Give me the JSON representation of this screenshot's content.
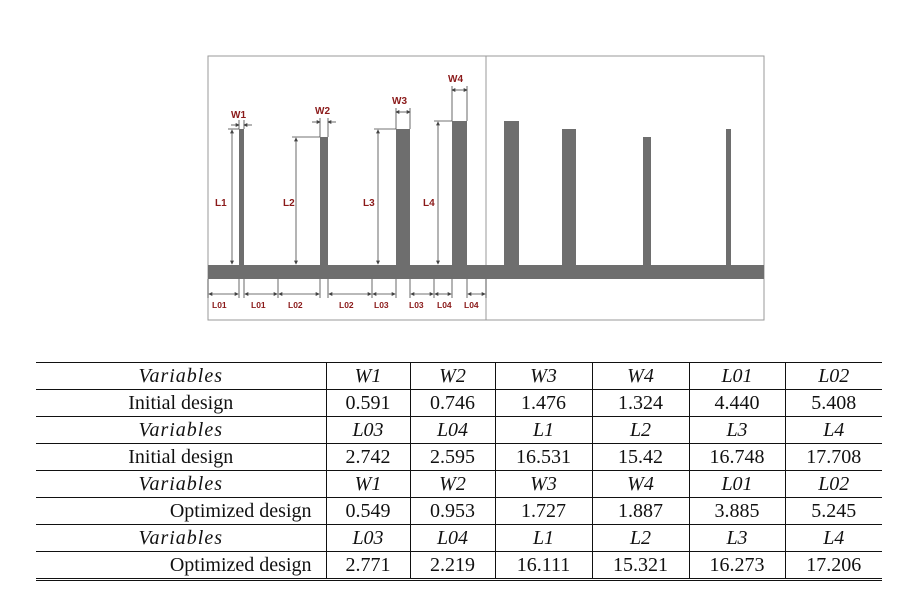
{
  "figure": {
    "labels": {
      "w1": "W1",
      "w2": "W2",
      "w3": "W3",
      "w4": "W4",
      "l1": "L1",
      "l2": "L2",
      "l3": "L3",
      "l4": "L4",
      "l01a": "L01",
      "l01b": "L01",
      "l02a": "L02",
      "l02b": "L02",
      "l03a": "L03",
      "l03b": "L03",
      "l04a": "L04",
      "l04b": "L04"
    },
    "bar_color": "#6e6e6e",
    "label_color": "#8b1a1a"
  },
  "table": {
    "rows": [
      {
        "header": "Variables",
        "values": [
          "W1",
          "W2",
          "W3",
          "W4",
          "L01",
          "L02"
        ]
      },
      {
        "header": "Initial design",
        "values": [
          "0.591",
          "0.746",
          "1.476",
          "1.324",
          "4.440",
          "5.408"
        ]
      },
      {
        "header": "Variables",
        "values": [
          "L03",
          "L04",
          "L1",
          "L2",
          "L3",
          "L4"
        ]
      },
      {
        "header": "Initial design",
        "values": [
          "2.742",
          "2.595",
          "16.531",
          "15.42",
          "16.748",
          "17.708"
        ]
      },
      {
        "header": "Variables",
        "values": [
          "W1",
          "W2",
          "W3",
          "W4",
          "L01",
          "L02"
        ]
      },
      {
        "header": "Optimized design",
        "values": [
          "0.549",
          "0.953",
          "1.727",
          "1.887",
          "3.885",
          "5.245"
        ]
      },
      {
        "header": "Variables",
        "values": [
          "L03",
          "L04",
          "L1",
          "L2",
          "L3",
          "L4"
        ]
      },
      {
        "header": "Optimized design",
        "values": [
          "2.771",
          "2.219",
          "16.111",
          "15.321",
          "16.273",
          "17.206"
        ]
      }
    ]
  }
}
